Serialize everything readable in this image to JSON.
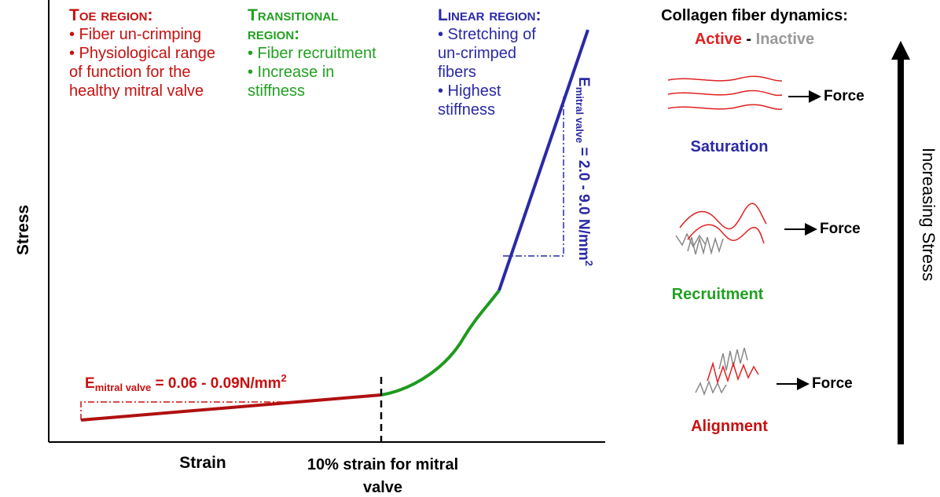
{
  "regions": {
    "toe": {
      "title": "Toe region:",
      "bullets": [
        "• Fiber un-crimping",
        "• Physiological range of function for the healthy mitral valve"
      ]
    },
    "transitional": {
      "title": "Transitional region:",
      "bullets": [
        "• Fiber recruitment",
        "• Increase in stiffness"
      ]
    },
    "linear": {
      "title": "Linear region:",
      "bullets": [
        "• Stretching of un-crimped fibers",
        "• Highest stiffness"
      ]
    }
  },
  "axes": {
    "y_label": "Stress",
    "x_label": "Strain",
    "marker_label": "10% strain for mitral valve"
  },
  "moduli": {
    "toe": {
      "symbol": "E",
      "subscript": "mitral valve",
      "value": " = 0.06 - 0.09N/mm",
      "superscript": "2"
    },
    "linear": {
      "symbol": "E",
      "subscript": "mitral valve",
      "value": " = 2.0 - 9.0 N/mm",
      "superscript": "2"
    }
  },
  "legend": {
    "title": "Collagen fiber dynamics:",
    "active": "Active",
    "separator": " - ",
    "inactive": "Inactive"
  },
  "states": [
    {
      "label": "Saturation",
      "force": "Force"
    },
    {
      "label": "Recruitment",
      "force": "Force"
    },
    {
      "label": "Alignment",
      "force": "Force"
    }
  ],
  "arrow_label": "Increasing Stress"
}
